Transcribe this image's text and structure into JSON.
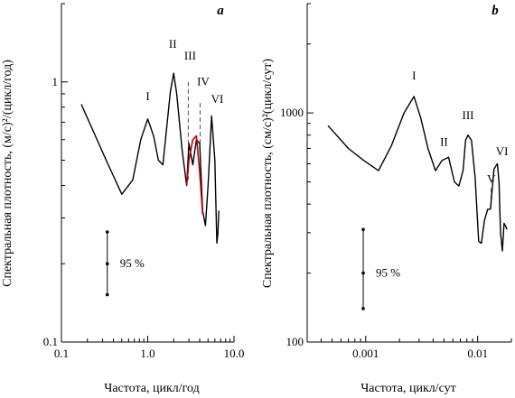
{
  "chart_data": [
    {
      "type": "line",
      "panel_label": "a",
      "xlabel": "Частота, цикл/год",
      "ylabel": "Спектральная плотность, (м/с)²/(цикл/год)",
      "x_scale": "log",
      "y_scale": "log",
      "xlim": [
        0.1,
        10
      ],
      "ylim": [
        0.1,
        2
      ],
      "x_ticks": [
        {
          "v": 0.1,
          "label": "0.1"
        },
        {
          "v": 1,
          "label": "1.0"
        },
        {
          "v": 10,
          "label": "10.0"
        }
      ],
      "y_ticks": [
        {
          "v": 0.1,
          "label": "0.1"
        },
        {
          "v": 1,
          "label": "1"
        }
      ],
      "series": [
        {
          "color": "#000000",
          "x": [
            0.17,
            0.33,
            0.5,
            0.67,
            0.83,
            1.0,
            1.17,
            1.33,
            1.5,
            1.83,
            2.0,
            2.17,
            2.5,
            2.83,
            3.0,
            3.33,
            3.67,
            4.0,
            4.33,
            4.67,
            5.0,
            5.5,
            6.0,
            6.33,
            6.5,
            6.67
          ],
          "y": [
            0.82,
            0.5,
            0.37,
            0.42,
            0.6,
            0.72,
            0.62,
            0.5,
            0.48,
            0.92,
            1.08,
            0.9,
            0.55,
            0.4,
            0.58,
            0.48,
            0.6,
            0.58,
            0.32,
            0.28,
            0.4,
            0.74,
            0.5,
            0.24,
            0.26,
            0.32
          ]
        },
        {
          "color": "#c00000",
          "x": [
            2.83,
            3.0,
            3.33,
            3.67,
            4.0,
            4.33
          ],
          "y": [
            0.4,
            0.5,
            0.6,
            0.62,
            0.45,
            0.31
          ]
        }
      ],
      "annotations": [
        {
          "text": "I",
          "x": 1.0,
          "y": 0.85
        },
        {
          "text": "II",
          "x": 1.95,
          "y": 1.35
        },
        {
          "text": "III",
          "x": 3.1,
          "y": 1.22
        },
        {
          "text": "IV",
          "x": 4.4,
          "y": 0.97
        },
        {
          "text": "VI",
          "x": 6.4,
          "y": 0.83
        }
      ],
      "dashed_markers": [
        {
          "x": 2.95,
          "y_top": 1.0,
          "y_bottom": 0.42
        },
        {
          "x": 4.05,
          "y_top": 0.83,
          "y_bottom": 0.52
        }
      ],
      "confidence": {
        "label": "95 %",
        "x": 0.34,
        "y_low": 0.152,
        "y_mid": 0.2,
        "y_high": 0.265
      }
    },
    {
      "type": "line",
      "panel_label": "b",
      "xlabel": "Частота, цикл/сут",
      "ylabel": "Спектральная плотность, (см/с)²(цикл/сут)",
      "x_scale": "log",
      "y_scale": "log",
      "xlim": [
        0.0003,
        0.02
      ],
      "ylim": [
        100,
        3000
      ],
      "x_ticks": [
        {
          "v": 0.001,
          "label": "0.001"
        },
        {
          "v": 0.01,
          "label": "0.01"
        }
      ],
      "y_ticks": [
        {
          "v": 100,
          "label": "100"
        },
        {
          "v": 1000,
          "label": "1000"
        }
      ],
      "series": [
        {
          "color": "#000000",
          "x": [
            0.00046,
            0.0007,
            0.00096,
            0.0013,
            0.0017,
            0.0022,
            0.0027,
            0.0031,
            0.0036,
            0.0042,
            0.0048,
            0.0055,
            0.0062,
            0.0068,
            0.0074,
            0.0078,
            0.0082,
            0.0088,
            0.0095,
            0.0102,
            0.0108,
            0.0115,
            0.0123,
            0.013,
            0.014,
            0.015,
            0.0155,
            0.016,
            0.0166,
            0.0172,
            0.0178,
            0.0183
          ],
          "y": [
            880,
            700,
            620,
            560,
            720,
            1000,
            1180,
            950,
            700,
            560,
            620,
            640,
            500,
            480,
            560,
            760,
            800,
            760,
            520,
            275,
            270,
            340,
            380,
            380,
            570,
            600,
            500,
            300,
            250,
            330,
            320,
            310
          ]
        }
      ],
      "annotations": [
        {
          "text": "I",
          "x": 0.0027,
          "y": 1400
        },
        {
          "text": "II",
          "x": 0.005,
          "y": 720
        },
        {
          "text": "III",
          "x": 0.0082,
          "y": 940
        },
        {
          "text": "V",
          "x": 0.0132,
          "y": 495
        },
        {
          "text": "VI",
          "x": 0.0165,
          "y": 655
        }
      ],
      "dashed_markers": [
        {
          "x": 0.0132,
          "y_top": 470,
          "y_bottom": 385
        }
      ],
      "confidence": {
        "label": "95 %",
        "x": 0.00095,
        "y_low": 140,
        "y_mid": 200,
        "y_high": 310
      }
    }
  ]
}
